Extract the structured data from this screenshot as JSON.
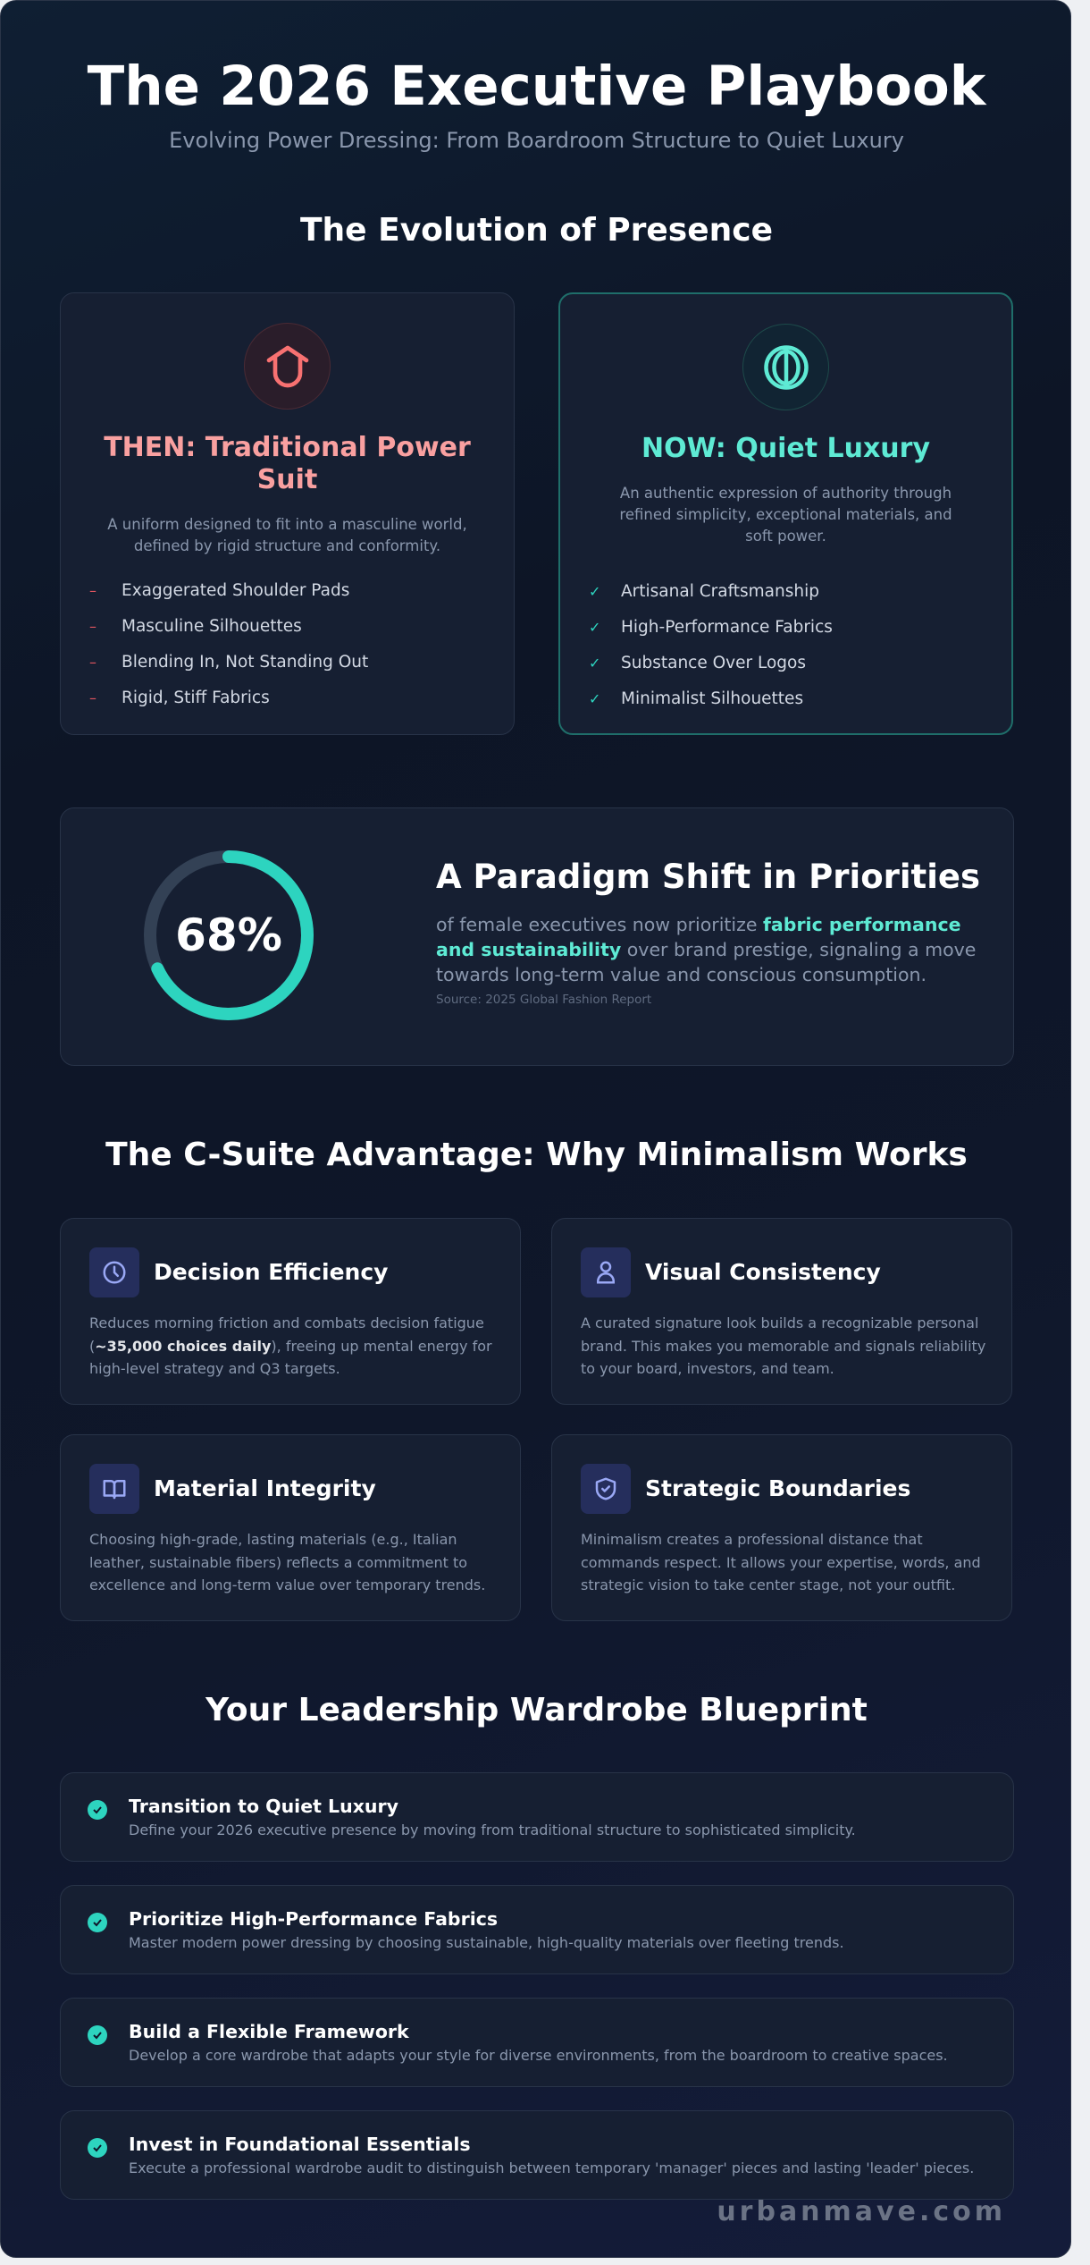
{
  "header": {
    "title": "The 2026 Executive Playbook",
    "subtitle": "Evolving Power Dressing: From Boardroom Structure to Quiet Luxury"
  },
  "evolution": {
    "heading": "The Evolution of Presence",
    "then": {
      "icon": "shirt-icon",
      "title": "THEN: Traditional Power Suit",
      "description": "A uniform designed to fit into a masculine world, defined by rigid structure and conformity.",
      "marker": "–",
      "items": [
        "Exaggerated Shoulder Pads",
        "Masculine Silhouettes",
        "Blending In, Not Standing Out",
        "Rigid, Stiff Fabrics"
      ],
      "color": "#f87171"
    },
    "now": {
      "icon": "circle-line-icon",
      "title": "NOW: Quiet Luxury",
      "description": "An authentic expression of authority through refined simplicity, exceptional materials, and soft power.",
      "marker": "✓",
      "items": [
        "Artisanal Craftsmanship",
        "High-Performance Fabrics",
        "Substance Over Logos",
        "Minimalist Silhouettes"
      ],
      "color": "#5eead4"
    }
  },
  "stat": {
    "percent": 68,
    "percent_label": "68%",
    "heading": "A Paradigm Shift in Priorities",
    "body_pre": "of female executives now prioritize ",
    "body_highlight": "fabric performance and sustainability",
    "body_post": " over brand prestige, signaling a move towards long-term value and conscious consumption.",
    "source": "Source: 2025 Global Fashion Report",
    "ring_color": "#2dd4bf",
    "track_color": "#334155"
  },
  "advantage": {
    "heading": "The C-Suite Advantage: Why Minimalism Works",
    "cards": [
      {
        "icon": "clock-icon",
        "title": "Decision Efficiency",
        "pre": "Reduces morning friction and combats decision fatigue (",
        "bold": "~35,000 choices daily",
        "post": "), freeing up mental energy for high-level strategy and Q3 targets."
      },
      {
        "icon": "user-icon",
        "title": "Visual Consistency",
        "pre": "A curated signature look builds a recognizable personal brand. This makes you memorable and signals reliability to your board, investors, and team.",
        "bold": "",
        "post": ""
      },
      {
        "icon": "book-icon",
        "title": "Material Integrity",
        "pre": "Choosing high-grade, lasting materials (e.g., Italian leather, sustainable fibers) reflects a commitment to excellence and long-term value over temporary trends.",
        "bold": "",
        "post": ""
      },
      {
        "icon": "shield-check-icon",
        "title": "Strategic Boundaries",
        "pre": "Minimalism creates a professional distance that commands respect. It allows your expertise, words, and strategic vision to take center stage, not your outfit.",
        "bold": "",
        "post": ""
      }
    ]
  },
  "blueprint": {
    "heading": "Your Leadership Wardrobe Blueprint",
    "items": [
      {
        "title": "Transition to Quiet Luxury",
        "desc": "Define your 2026 executive presence by moving from traditional structure to sophisticated simplicity."
      },
      {
        "title": "Prioritize High-Performance Fabrics",
        "desc": "Master modern power dressing by choosing sustainable, high-quality materials over fleeting trends."
      },
      {
        "title": "Build a Flexible Framework",
        "desc": "Develop a core wardrobe that adapts your style for diverse environments, from the boardroom to creative spaces."
      },
      {
        "title": "Invest in Foundational Essentials",
        "desc": "Execute a professional wardrobe audit to distinguish between temporary 'manager' pieces and lasting 'leader' pieces."
      }
    ]
  },
  "footer": {
    "brand": "urbanmave.com"
  }
}
